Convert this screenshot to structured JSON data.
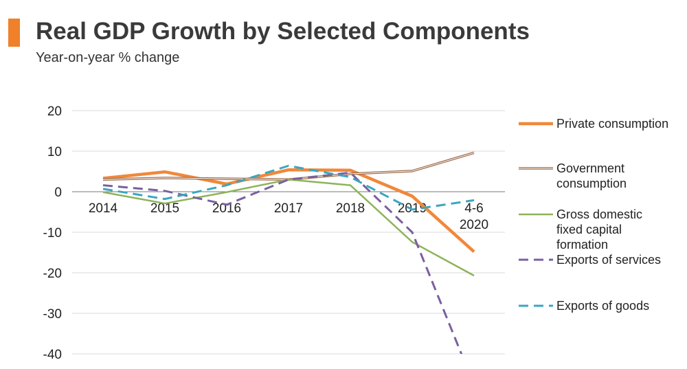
{
  "chart_data": {
    "type": "line",
    "title": "Real GDP Growth by Selected Components",
    "subtitle": "Year-on-year % change",
    "categories": [
      "2014",
      "2015",
      "2016",
      "2017",
      "2018",
      "2019",
      "4-6 2020"
    ],
    "ylim": [
      -40,
      20
    ],
    "yticks": [
      20,
      10,
      0,
      -10,
      -20,
      -30,
      -40
    ],
    "grid": true,
    "legend": "right",
    "series": [
      {
        "name": "Private consumption",
        "color": "#f0883a",
        "style": "solid-thick",
        "values": [
          3.3,
          4.9,
          1.9,
          5.4,
          5.3,
          -1.1,
          -14.8
        ]
      },
      {
        "name": "Government consumption",
        "color": "#9e6b4a",
        "style": "double",
        "values": [
          3.0,
          3.4,
          3.2,
          3.0,
          4.4,
          5.1,
          9.6
        ]
      },
      {
        "name": "Gross domestic fixed capital formation",
        "color": "#8db35a",
        "style": "solid",
        "values": [
          -0.1,
          -2.9,
          -0.1,
          3.0,
          1.6,
          -12.4,
          -20.7
        ]
      },
      {
        "name": "Exports of services",
        "color": "#7a5fa0",
        "style": "dashed",
        "values": [
          1.6,
          0.2,
          -3.2,
          3.0,
          4.7,
          -10.0,
          -47.7
        ]
      },
      {
        "name": "Exports of goods",
        "color": "#3aa6c0",
        "style": "dashed",
        "values": [
          0.7,
          -1.8,
          1.6,
          6.4,
          3.6,
          -4.4,
          -2.1
        ]
      }
    ]
  }
}
